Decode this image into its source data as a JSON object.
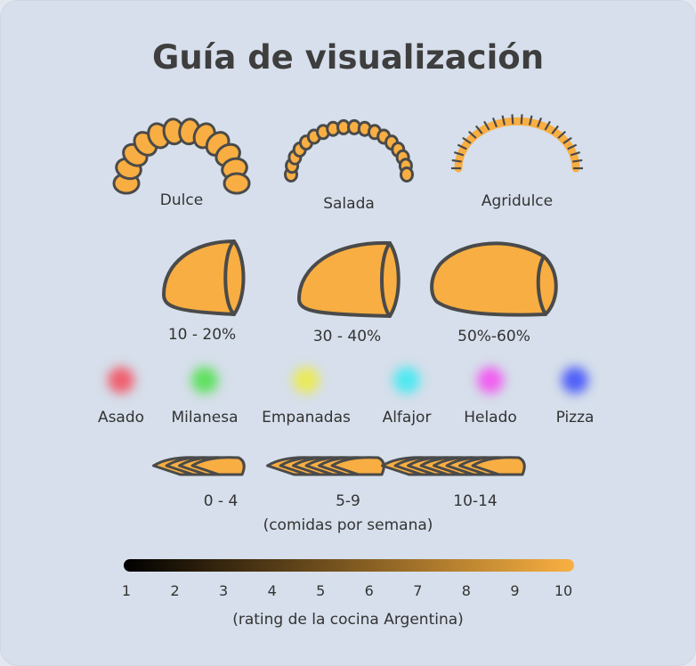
{
  "title": "Guía de visualización",
  "flavor": {
    "items": [
      {
        "label": "Dulce",
        "icon": "sweet-arc-icon"
      },
      {
        "label": "Salada",
        "icon": "salty-arc-icon"
      },
      {
        "label": "Agridulce",
        "icon": "sweet-sour-arc-icon"
      }
    ]
  },
  "size": {
    "items": [
      {
        "label": "10 - 20%",
        "icon": "small-empanada-icon"
      },
      {
        "label": "30 - 40%",
        "icon": "medium-empanada-icon"
      },
      {
        "label": "50%-60%",
        "icon": "large-empanada-icon"
      }
    ]
  },
  "food": {
    "items": [
      {
        "label": "Asado",
        "color": "#f06070"
      },
      {
        "label": "Milanesa",
        "color": "#60e060"
      },
      {
        "label": "Empanadas",
        "color": "#eaea5a"
      },
      {
        "label": "Alfajor",
        "color": "#50e8f0"
      },
      {
        "label": "Helado",
        "color": "#f060f0"
      },
      {
        "label": "Pizza",
        "color": "#5060f8"
      }
    ]
  },
  "frequency": {
    "items": [
      {
        "label": "0 - 4",
        "count": 4
      },
      {
        "label": "5-9",
        "count": 6
      },
      {
        "label": "10-14",
        "count": 8
      }
    ],
    "unit": "(comidas por semana)"
  },
  "rating": {
    "ticks": [
      "1",
      "2",
      "3",
      "4",
      "5",
      "6",
      "7",
      "8",
      "9",
      "10"
    ],
    "label": "(rating de la cocina Argentina)",
    "color_start": "#000000",
    "color_end": "#f9b041"
  },
  "colors": {
    "fill": "#f8ae42",
    "stroke": "#4a4a4a"
  }
}
